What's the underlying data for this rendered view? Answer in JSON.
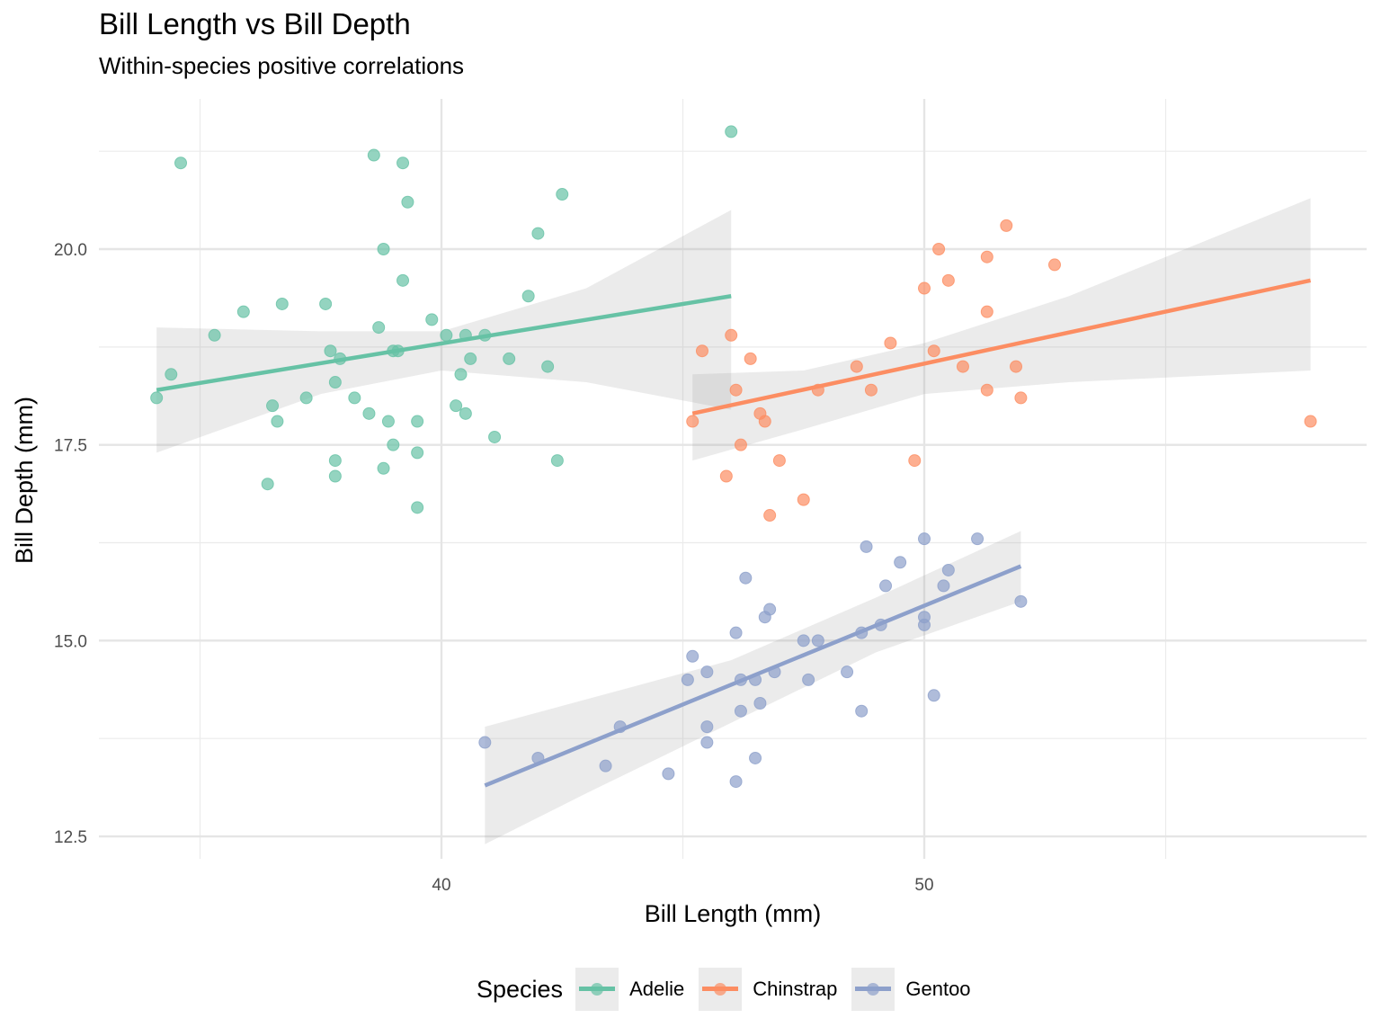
{
  "chart_data": {
    "type": "scatter",
    "title": "Bill Length vs Bill Depth",
    "subtitle": "Within-species positive correlations",
    "xlabel": "Bill Length (mm)",
    "ylabel": "Bill Depth (mm)",
    "xlim": [
      32.8,
      60.0
    ],
    "ylim": [
      12.0,
      21.8
    ],
    "x_ticks": [
      40,
      50
    ],
    "x_tick_labels": [
      "40",
      "50"
    ],
    "x_minor_ticks": [
      35,
      45,
      55
    ],
    "y_ticks": [
      12.5,
      15.0,
      17.5,
      20.0
    ],
    "y_tick_labels": [
      "12.5",
      "15.0",
      "17.5",
      "20.0"
    ],
    "y_minor_ticks": [
      13.75,
      16.25,
      18.75,
      21.25
    ],
    "grid": true,
    "legend": {
      "title": "Species",
      "position": "bottom",
      "entries": [
        "Adelie",
        "Chinstrap",
        "Gentoo"
      ]
    },
    "series": [
      {
        "name": "Adelie",
        "color": "#66c2a5",
        "points": [
          [
            34.6,
            21.1
          ],
          [
            38.6,
            21.2
          ],
          [
            39.2,
            21.1
          ],
          [
            39.3,
            20.6
          ],
          [
            38.8,
            20.0
          ],
          [
            39.2,
            19.6
          ],
          [
            42.5,
            20.7
          ],
          [
            42.0,
            20.2
          ],
          [
            41.8,
            19.4
          ],
          [
            35.9,
            19.2
          ],
          [
            36.7,
            19.3
          ],
          [
            37.6,
            19.3
          ],
          [
            35.3,
            18.9
          ],
          [
            38.7,
            19.0
          ],
          [
            39.8,
            19.1
          ],
          [
            40.1,
            18.9
          ],
          [
            40.5,
            18.9
          ],
          [
            40.9,
            18.9
          ],
          [
            34.4,
            18.4
          ],
          [
            37.7,
            18.7
          ],
          [
            37.9,
            18.6
          ],
          [
            39.0,
            18.7
          ],
          [
            39.1,
            18.7
          ],
          [
            40.6,
            18.6
          ],
          [
            41.4,
            18.6
          ],
          [
            42.2,
            18.5
          ],
          [
            40.4,
            18.4
          ],
          [
            34.1,
            18.1
          ],
          [
            37.2,
            18.1
          ],
          [
            38.2,
            18.1
          ],
          [
            37.8,
            18.3
          ],
          [
            36.5,
            18.0
          ],
          [
            40.3,
            18.0
          ],
          [
            40.5,
            17.9
          ],
          [
            38.5,
            17.9
          ],
          [
            36.6,
            17.8
          ],
          [
            38.9,
            17.8
          ],
          [
            39.5,
            17.8
          ],
          [
            41.1,
            17.6
          ],
          [
            39.0,
            17.5
          ],
          [
            39.5,
            17.4
          ],
          [
            37.8,
            17.3
          ],
          [
            42.4,
            17.3
          ],
          [
            38.8,
            17.2
          ],
          [
            37.8,
            17.1
          ],
          [
            36.4,
            17.0
          ],
          [
            39.5,
            16.7
          ],
          [
            46.0,
            21.5
          ]
        ],
        "fit": {
          "x": [
            34.1,
            46.0
          ],
          "y": [
            18.2,
            19.4
          ]
        },
        "ci": {
          "x": [
            34.1,
            37.5,
            40.0,
            43.0,
            46.0
          ],
          "lower": [
            17.4,
            18.15,
            18.45,
            18.3,
            17.95
          ],
          "upper": [
            19.0,
            18.95,
            18.95,
            19.5,
            20.5
          ]
        }
      },
      {
        "name": "Chinstrap",
        "color": "#fc8d62",
        "points": [
          [
            45.4,
            18.7
          ],
          [
            46.0,
            18.9
          ],
          [
            46.4,
            18.6
          ],
          [
            46.1,
            18.2
          ],
          [
            45.2,
            17.8
          ],
          [
            46.6,
            17.9
          ],
          [
            46.7,
            17.8
          ],
          [
            46.2,
            17.5
          ],
          [
            45.9,
            17.1
          ],
          [
            47.0,
            17.3
          ],
          [
            47.5,
            16.8
          ],
          [
            46.8,
            16.6
          ],
          [
            48.9,
            18.2
          ],
          [
            47.8,
            18.2
          ],
          [
            48.6,
            18.5
          ],
          [
            49.3,
            18.8
          ],
          [
            50.0,
            19.5
          ],
          [
            50.3,
            20.0
          ],
          [
            50.5,
            19.6
          ],
          [
            50.2,
            18.7
          ],
          [
            50.8,
            18.5
          ],
          [
            51.3,
            19.9
          ],
          [
            51.7,
            20.3
          ],
          [
            51.3,
            19.2
          ],
          [
            51.3,
            18.2
          ],
          [
            51.9,
            18.5
          ],
          [
            52.0,
            18.1
          ],
          [
            52.7,
            19.8
          ],
          [
            49.8,
            17.3
          ],
          [
            58.0,
            17.8
          ]
        ],
        "fit": {
          "x": [
            45.2,
            58.0
          ],
          "y": [
            17.9,
            19.6
          ]
        },
        "ci": {
          "x": [
            45.2,
            47.5,
            50.0,
            53.0,
            58.0
          ],
          "lower": [
            17.3,
            17.7,
            18.15,
            18.3,
            18.45
          ],
          "upper": [
            18.4,
            18.45,
            18.8,
            19.4,
            20.65
          ]
        }
      },
      {
        "name": "Gentoo",
        "color": "#8da0cb",
        "points": [
          [
            40.9,
            13.7
          ],
          [
            42.0,
            13.5
          ],
          [
            43.4,
            13.4
          ],
          [
            43.7,
            13.9
          ],
          [
            44.7,
            13.3
          ],
          [
            45.1,
            14.5
          ],
          [
            45.2,
            14.8
          ],
          [
            45.5,
            14.6
          ],
          [
            45.5,
            13.9
          ],
          [
            45.5,
            13.7
          ],
          [
            46.1,
            15.1
          ],
          [
            46.2,
            14.5
          ],
          [
            46.2,
            14.1
          ],
          [
            46.1,
            13.2
          ],
          [
            46.3,
            15.8
          ],
          [
            46.5,
            14.5
          ],
          [
            46.5,
            13.5
          ],
          [
            46.6,
            14.2
          ],
          [
            46.7,
            15.3
          ],
          [
            46.8,
            15.4
          ],
          [
            46.9,
            14.6
          ],
          [
            47.5,
            15.0
          ],
          [
            47.6,
            14.5
          ],
          [
            47.8,
            15.0
          ],
          [
            48.4,
            14.6
          ],
          [
            48.7,
            15.1
          ],
          [
            48.7,
            14.1
          ],
          [
            48.8,
            16.2
          ],
          [
            49.1,
            15.2
          ],
          [
            49.2,
            15.7
          ],
          [
            49.5,
            16.0
          ],
          [
            50.0,
            16.3
          ],
          [
            50.0,
            15.3
          ],
          [
            50.0,
            15.2
          ],
          [
            50.2,
            14.3
          ],
          [
            50.4,
            15.7
          ],
          [
            50.5,
            15.9
          ],
          [
            51.1,
            16.3
          ],
          [
            52.0,
            15.5
          ]
        ],
        "fit": {
          "x": [
            40.9,
            52.0
          ],
          "y": [
            13.15,
            15.95
          ]
        },
        "ci": {
          "x": [
            40.9,
            43.0,
            46.0,
            49.0,
            52.0
          ],
          "lower": [
            12.4,
            13.05,
            13.95,
            14.85,
            15.5
          ],
          "upper": [
            13.9,
            14.25,
            14.75,
            15.55,
            16.4
          ]
        }
      }
    ]
  }
}
